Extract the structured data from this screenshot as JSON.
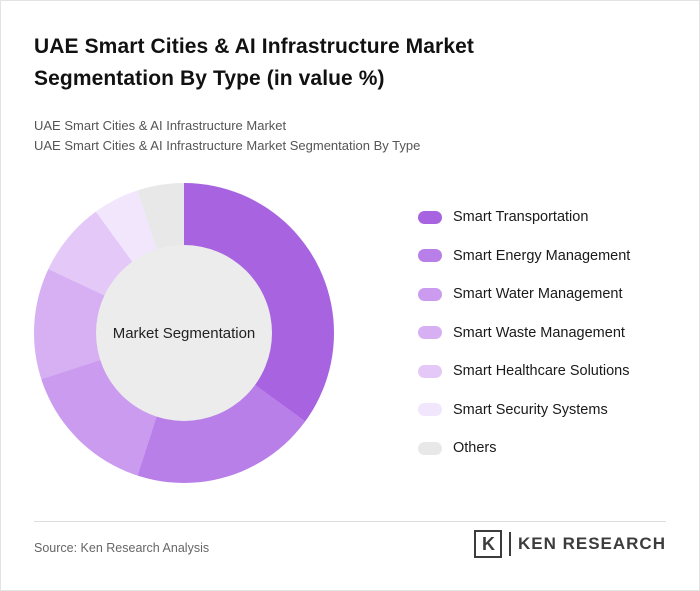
{
  "header": {
    "title": "UAE Smart Cities & AI Infrastructure Market Segmentation By Type (in value %)",
    "subtitle1": "UAE Smart Cities & AI Infrastructure Market",
    "subtitle2": "UAE Smart Cities & AI Infrastructure Market Segmentation By Type"
  },
  "chart_data": {
    "type": "pie",
    "donut": true,
    "title": "UAE Smart Cities & AI Infrastructure Market Segmentation By Type (in value %)",
    "center_label": "Market Segmentation",
    "categories": [
      "Smart Transportation",
      "Smart Energy Management",
      "Smart Water Management",
      "Smart Waste Management",
      "Smart Healthcare Solutions",
      "Smart Security Systems",
      "Others"
    ],
    "values": [
      35,
      20,
      15,
      12,
      8,
      5,
      5
    ],
    "colors": [
      "#A864E0",
      "#B97FE8",
      "#CB9BEF",
      "#D7AFF3",
      "#E4C9F8",
      "#F1E6FC",
      "#E8E8E8"
    ],
    "start_angle_deg": 0,
    "direction": "clockwise",
    "legend_position": "right",
    "hole_color": "#ececec"
  },
  "footer": {
    "source": "Source: Ken Research Analysis",
    "logo_letter": "K",
    "logo_text": "KEN RESEARCH"
  }
}
